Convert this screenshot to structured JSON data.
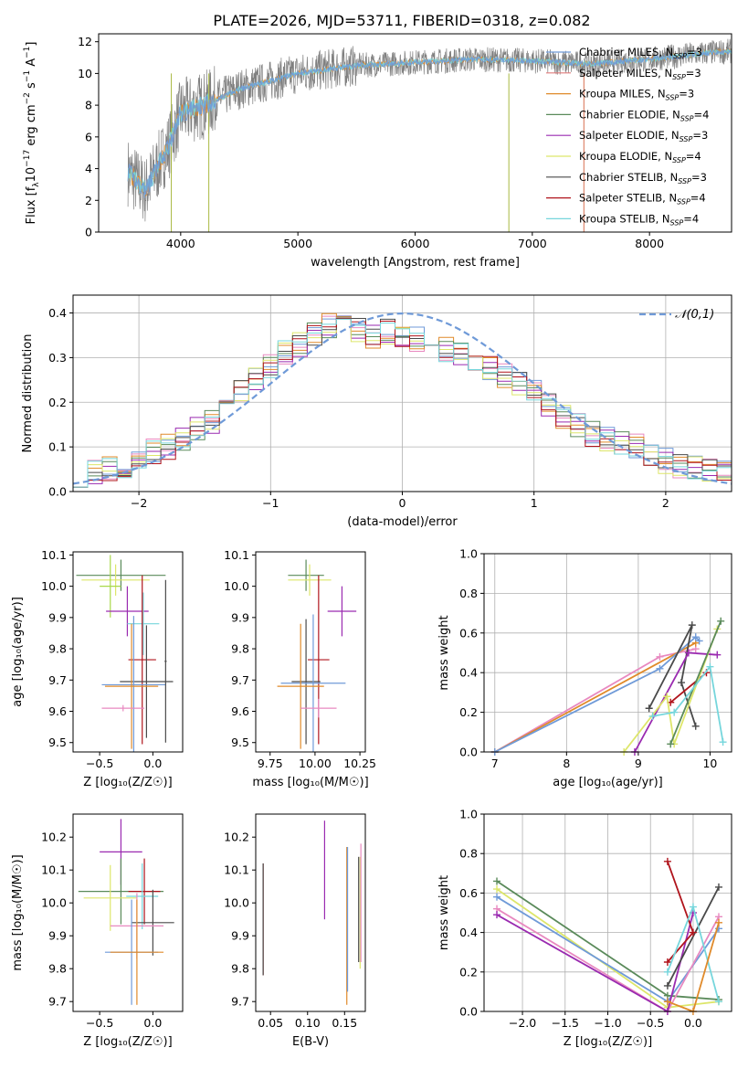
{
  "figure_title": "PLATE=2026, MJD=53711, FIBERID=0318, z=0.082",
  "colors": {
    "Chabrier MILES": "#6f9ad8",
    "Salpeter MILES": "#e07b7b",
    "Kroupa MILES": "#e08a2a",
    "Chabrier ELODIE": "#5a8a5a",
    "Salpeter ELODIE": "#9a2ab0",
    "Kroupa ELODIE": "#dde66a",
    "Chabrier STELIB": "#4a4a4a",
    "Salpeter STELIB": "#b0141c",
    "Kroupa STELIB": "#76d6dc",
    "Pink": "#e889c0",
    "Lime": "#a8d84a",
    "Orange2": "#f08040",
    "data": "#808080",
    "normal": "#6f9ad8"
  },
  "chart_data": [
    {
      "id": "spectrum",
      "type": "line",
      "title": "PLATE=2026, MJD=53711, FIBERID=0318, z=0.082",
      "xlabel": "wavelength [Angstrom, rest frame]",
      "ylabel": "Flux [f_λ10^{-17} erg cm^{-2} s^{-1} A^{-1}]",
      "xlim": [
        3300,
        8700
      ],
      "ylim": [
        0,
        12.5
      ],
      "xticks": [
        4000,
        5000,
        6000,
        7000,
        8000
      ],
      "yticks": [
        0,
        2,
        4,
        6,
        8,
        10,
        12
      ],
      "grid": false,
      "legend_position": "top-right",
      "continuum": {
        "x": [
          3550,
          3700,
          3900,
          4000,
          4200,
          4500,
          5000,
          5500,
          6000,
          6500,
          7000,
          7500,
          8000,
          8500,
          8700
        ],
        "y": [
          3.8,
          2.6,
          5.5,
          7.5,
          8.0,
          9.0,
          10.0,
          10.5,
          10.7,
          10.9,
          10.8,
          10.6,
          10.9,
          11.3,
          11.4
        ]
      },
      "series": [
        {
          "name": "Chabrier MILES",
          "label_suffix": "=3"
        },
        {
          "name": "Salpeter MILES",
          "label_suffix": "=3"
        },
        {
          "name": "Kroupa MILES",
          "label_suffix": "=3"
        },
        {
          "name": "Chabrier ELODIE",
          "label_suffix": "=4"
        },
        {
          "name": "Salpeter ELODIE",
          "label_suffix": "=3"
        },
        {
          "name": "Kroupa ELODIE",
          "label_suffix": "=4"
        },
        {
          "name": "Chabrier STELIB",
          "label_suffix": "=3"
        },
        {
          "name": "Salpeter STELIB",
          "label_suffix": "=4"
        },
        {
          "name": "Kroupa STELIB",
          "label_suffix": "=4"
        }
      ]
    },
    {
      "id": "residuals",
      "type": "bar",
      "xlabel": "(data-model)/error",
      "ylabel": "Normed distribution",
      "xlim": [
        -2.5,
        2.5
      ],
      "ylim": [
        0,
        0.44
      ],
      "xticks": [
        -2,
        -1,
        0,
        1,
        2
      ],
      "yticks": [
        0.0,
        0.1,
        0.2,
        0.3,
        0.4
      ],
      "grid": true,
      "legend": "𝒩(0,1)",
      "legend_position": "top-right",
      "histogram_center": [
        0.04,
        0.04,
        0.05,
        0.06,
        0.07,
        0.09,
        0.1,
        0.12,
        0.14,
        0.16,
        0.19,
        0.22,
        0.25,
        0.28,
        0.31,
        0.33,
        0.35,
        0.37,
        0.38,
        0.36,
        0.35,
        0.36,
        0.35,
        0.34,
        0.33,
        0.32,
        0.31,
        0.3,
        0.28,
        0.26,
        0.24,
        0.22,
        0.19,
        0.17,
        0.15,
        0.13,
        0.12,
        0.11,
        0.1,
        0.08,
        0.07,
        0.06,
        0.05,
        0.05,
        0.05
      ]
    },
    {
      "id": "age_vs_Z",
      "type": "scatter",
      "xlabel": "Z [log₁₀(Z/Z☉)]",
      "ylabel": "age  [log₁₀(age/yr)]",
      "xlim": [
        -0.75,
        0.28
      ],
      "ylim": [
        9.47,
        10.11
      ],
      "xticks": [
        -0.5,
        0.0
      ],
      "yticks": [
        9.5,
        9.6,
        9.7,
        9.8,
        9.9,
        10.0,
        10.1
      ],
      "points": [
        {
          "series": "Chabrier ELODIE",
          "x": -0.3,
          "xerr": 0.42,
          "y": 10.035,
          "yerr": 0.05
        },
        {
          "series": "Kroupa ELODIE",
          "x": -0.35,
          "xerr": 0.32,
          "y": 10.02,
          "yerr": 0.05
        },
        {
          "series": "Lime",
          "x": -0.4,
          "xerr": 0.1,
          "y": 10.0,
          "yerr": 0.1
        },
        {
          "series": "Salpeter ELODIE",
          "x": -0.24,
          "xerr": 0.2,
          "y": 9.92,
          "yerr": 0.08
        },
        {
          "series": "Kroupa STELIB",
          "x": -0.09,
          "xerr": 0.15,
          "y": 9.88,
          "yerr": 0.1
        },
        {
          "series": "Salpeter STELIB",
          "x": -0.1,
          "xerr": 0.13,
          "y": 9.765,
          "yerr": 0.27
        },
        {
          "series": "Chabrier STELIB",
          "x": -0.06,
          "xerr": 0.25,
          "y": 9.695,
          "yerr": 0.18
        },
        {
          "series": "Chabrier MILES",
          "x": -0.18,
          "xerr": 0.3,
          "y": 9.685,
          "yerr": 0.22
        },
        {
          "series": "Kroupa MILES",
          "x": -0.2,
          "xerr": 0.25,
          "y": 9.68,
          "yerr": 0.2
        },
        {
          "series": "Chabrier STELIB",
          "x": 0.12,
          "xerr": 0.01,
          "y": 9.76,
          "yerr": 0.26
        },
        {
          "series": "Pink",
          "x": -0.28,
          "xerr": 0.2,
          "y": 9.61,
          "yerr": 0.01
        }
      ]
    },
    {
      "id": "age_vs_mass",
      "type": "scatter",
      "xlabel": "mass [log₁₀(M/M☉)]",
      "ylabel": "",
      "xlim": [
        9.67,
        10.28
      ],
      "ylim": [
        9.47,
        10.11
      ],
      "xticks": [
        9.75,
        10.0,
        10.25
      ],
      "yticks": [
        9.5,
        9.6,
        9.7,
        9.8,
        9.9,
        10.0,
        10.1
      ],
      "points": [
        {
          "series": "Chabrier ELODIE",
          "x": 9.95,
          "xerr": 0.1,
          "y": 10.035,
          "yerr": 0.05
        },
        {
          "series": "Kroupa ELODIE",
          "x": 9.97,
          "xerr": 0.12,
          "y": 10.02,
          "yerr": 0.05
        },
        {
          "series": "Salpeter ELODIE",
          "x": 10.15,
          "xerr": 0.08,
          "y": 9.92,
          "yerr": 0.08
        },
        {
          "series": "Salpeter STELIB",
          "x": 10.02,
          "xerr": 0.06,
          "y": 9.765,
          "yerr": 0.27
        },
        {
          "series": "Chabrier STELIB",
          "x": 9.95,
          "xerr": 0.08,
          "y": 9.695,
          "yerr": 0.2
        },
        {
          "series": "Chabrier MILES",
          "x": 9.99,
          "xerr": 0.18,
          "y": 9.69,
          "yerr": 0.22
        },
        {
          "series": "Kroupa MILES",
          "x": 9.92,
          "xerr": 0.13,
          "y": 9.68,
          "yerr": 0.2
        },
        {
          "series": "Pink",
          "x": 10.02,
          "xerr": 0.1,
          "y": 9.61,
          "yerr": 0.03
        }
      ]
    },
    {
      "id": "weight_vs_age",
      "type": "line",
      "xlabel": "age  [log₁₀(age/yr)]",
      "ylabel": "mass weight",
      "xlim": [
        6.85,
        10.3
      ],
      "ylim": [
        0,
        1.0
      ],
      "xticks": [
        7,
        8,
        9,
        10
      ],
      "yticks": [
        0.0,
        0.2,
        0.4,
        0.6,
        0.8,
        1.0
      ],
      "grid": true,
      "series": [
        {
          "name": "Pink",
          "x": [
            7.0,
            9.3,
            9.8
          ],
          "y": [
            0.0,
            0.48,
            0.52
          ]
        },
        {
          "name": "Kroupa MILES",
          "x": [
            7.0,
            9.8
          ],
          "y": [
            0.0,
            0.55
          ]
        },
        {
          "name": "Chabrier MILES",
          "x": [
            7.0,
            9.3,
            9.8,
            9.85
          ],
          "y": [
            0.0,
            0.42,
            0.58,
            0.56
          ]
        },
        {
          "name": "Chabrier STELIB",
          "x": [
            9.15,
            9.75,
            9.6,
            9.8
          ],
          "y": [
            0.22,
            0.64,
            0.35,
            0.13
          ]
        },
        {
          "name": "Salpeter ELODIE",
          "x": [
            8.95,
            9.7,
            10.1
          ],
          "y": [
            0.0,
            0.5,
            0.49
          ]
        },
        {
          "name": "Salpeter STELIB",
          "x": [
            9.45,
            9.95
          ],
          "y": [
            0.25,
            0.4
          ]
        },
        {
          "name": "Kroupa ELODIE",
          "x": [
            8.8,
            9.4,
            9.5,
            10.1
          ],
          "y": [
            0.0,
            0.28,
            0.04,
            0.62
          ]
        },
        {
          "name": "Chabrier ELODIE",
          "x": [
            9.45,
            10.15
          ],
          "y": [
            0.04,
            0.66
          ]
        },
        {
          "name": "Kroupa STELIB",
          "x": [
            9.2,
            9.5,
            10.0,
            10.18
          ],
          "y": [
            0.18,
            0.2,
            0.43,
            0.05
          ]
        }
      ]
    },
    {
      "id": "mass_vs_Z",
      "type": "scatter",
      "xlabel": "Z [log₁₀(Z/Z☉)]",
      "ylabel": "mass [log₁₀(M/M☉)]",
      "xlim": [
        -0.75,
        0.28
      ],
      "ylim": [
        9.67,
        10.27
      ],
      "xticks": [
        -0.5,
        0.0
      ],
      "yticks": [
        9.7,
        9.8,
        9.9,
        10.0,
        10.1,
        10.2
      ],
      "points": [
        {
          "series": "Salpeter ELODIE",
          "x": -0.3,
          "xerr": 0.2,
          "y": 10.155,
          "yerr": 0.1
        },
        {
          "series": "Chabrier ELODIE",
          "x": -0.3,
          "xerr": 0.4,
          "y": 10.035,
          "yerr": 0.1
        },
        {
          "series": "Salpeter STELIB",
          "x": -0.08,
          "xerr": 0.15,
          "y": 10.035,
          "yerr": 0.1
        },
        {
          "series": "Kroupa STELIB",
          "x": -0.1,
          "xerr": 0.15,
          "y": 10.02,
          "yerr": 0.1
        },
        {
          "series": "Kroupa ELODIE",
          "x": -0.4,
          "xerr": 0.25,
          "y": 10.015,
          "yerr": 0.1
        },
        {
          "series": "Chabrier STELIB",
          "x": 0.0,
          "xerr": 0.2,
          "y": 9.94,
          "yerr": 0.1
        },
        {
          "series": "Pink",
          "x": -0.15,
          "xerr": 0.25,
          "y": 9.93,
          "yerr": 0.1
        },
        {
          "series": "Chabrier MILES",
          "x": -0.2,
          "xerr": 0.25,
          "y": 9.85,
          "yerr": 0.16
        },
        {
          "series": "Kroupa MILES",
          "x": -0.15,
          "xerr": 0.25,
          "y": 9.85,
          "yerr": 0.16
        }
      ]
    },
    {
      "id": "mass_vs_ebv",
      "type": "scatter",
      "xlabel": "E(B-V)",
      "ylabel": "",
      "xlim": [
        0.03,
        0.178
      ],
      "ylim": [
        9.67,
        10.27
      ],
      "xticks": [
        0.05,
        0.1,
        0.15
      ],
      "yticks": [
        9.7,
        9.8,
        9.9,
        10.0,
        10.1,
        10.2
      ],
      "points": [
        {
          "series": "Salpeter STELIB",
          "x": 0.04,
          "y": 9.95,
          "yerr": 0.17
        },
        {
          "series": "Chabrier STELIB",
          "x": 0.04,
          "y": 9.95,
          "yerr": 0.17
        },
        {
          "series": "Salpeter ELODIE",
          "x": 0.123,
          "y": 10.1,
          "yerr": 0.15
        },
        {
          "series": "Kroupa MILES",
          "x": 0.153,
          "y": 9.93,
          "yerr": 0.24
        },
        {
          "series": "Chabrier MILES",
          "x": 0.154,
          "y": 9.95,
          "yerr": 0.22
        },
        {
          "series": "Chabrier STELIB",
          "x": 0.169,
          "y": 9.98,
          "yerr": 0.16
        },
        {
          "series": "Kroupa ELODIE",
          "x": 0.171,
          "y": 9.97,
          "yerr": 0.17
        },
        {
          "series": "Pink",
          "x": 0.172,
          "y": 10.0,
          "yerr": 0.18
        }
      ]
    },
    {
      "id": "weight_vs_Z",
      "type": "line",
      "xlabel": "Z [log₁₀(Z/Z☉)]",
      "ylabel": "mass weight",
      "xlim": [
        -2.45,
        0.45
      ],
      "ylim": [
        0,
        1.0
      ],
      "xticks": [
        -2.0,
        -1.5,
        -1.0,
        -0.5,
        0.0
      ],
      "yticks": [
        0.0,
        0.2,
        0.4,
        0.6,
        0.8,
        1.0
      ],
      "grid": true,
      "series": [
        {
          "name": "Chabrier ELODIE",
          "x": [
            -2.3,
            -0.3,
            0.3
          ],
          "y": [
            0.66,
            0.08,
            0.06
          ]
        },
        {
          "name": "Kroupa ELODIE",
          "x": [
            -2.3,
            -0.3,
            0.3
          ],
          "y": [
            0.62,
            0.02,
            0.05
          ]
        },
        {
          "name": "Chabrier MILES",
          "x": [
            -2.3,
            -0.3,
            0.3
          ],
          "y": [
            0.58,
            0.05,
            0.42
          ]
        },
        {
          "name": "Pink",
          "x": [
            -2.3,
            -0.3,
            0.3
          ],
          "y": [
            0.52,
            0.0,
            0.48
          ]
        },
        {
          "name": "Salpeter ELODIE",
          "x": [
            -2.3,
            -0.3,
            0.0
          ],
          "y": [
            0.49,
            0.0,
            0.5
          ]
        },
        {
          "name": "Chabrier STELIB",
          "x": [
            -0.3,
            0.3
          ],
          "y": [
            0.13,
            0.63
          ]
        },
        {
          "name": "Salpeter STELIB",
          "x": [
            -0.3,
            0.0,
            -0.3
          ],
          "y": [
            0.25,
            0.4,
            0.76
          ]
        },
        {
          "name": "Kroupa STELIB",
          "x": [
            -0.3,
            0.0,
            0.3
          ],
          "y": [
            0.2,
            0.53,
            0.05
          ]
        },
        {
          "name": "Kroupa MILES",
          "x": [
            -0.3,
            0.0,
            0.3
          ],
          "y": [
            0.05,
            0.0,
            0.45
          ]
        }
      ]
    }
  ]
}
